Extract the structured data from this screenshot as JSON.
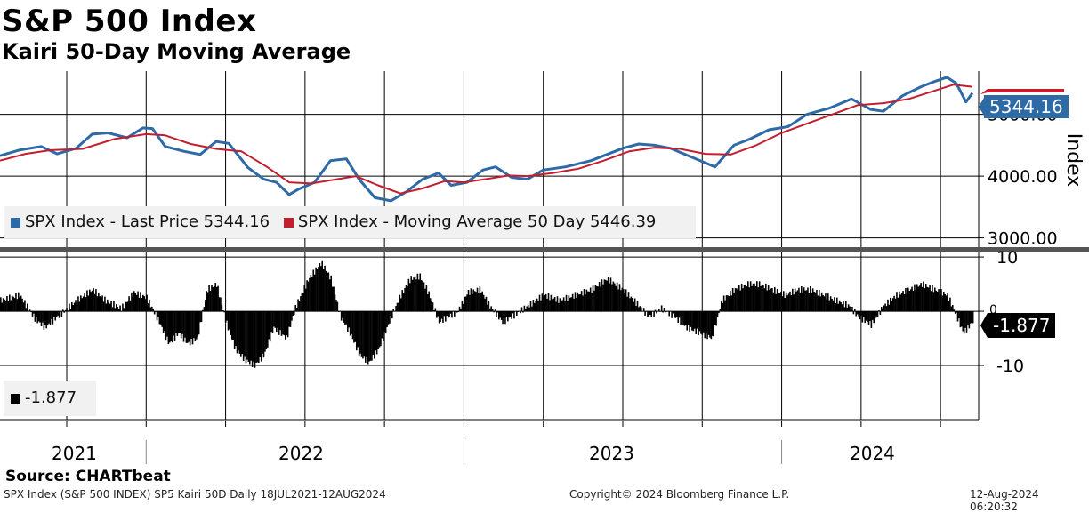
{
  "header": {
    "title": "S&P 500 Index",
    "subtitle": "Kairi 50-Day Moving Average"
  },
  "source": "Source: CHARTbeat",
  "footer": {
    "left": "SPX Index (S&P 500 INDEX) SP5 Kairi 50D  Daily 18JUL2021-12AUG2024",
    "center": "Copyright© 2024 Bloomberg Finance L.P.",
    "right": "12-Aug-2024 06:20:32"
  },
  "legend_top": {
    "last_price": "SPX Index - Last Price 5344.16",
    "moving_average": "SPX Index - Moving Average 50 Day 5446.39"
  },
  "legend_bottom": {
    "kairi": "-1.877"
  },
  "value_boxes": {
    "price": "5344.16",
    "kairi": "-1.877"
  },
  "colors": {
    "price": "#2e6aa6",
    "ma": "#c41e2e",
    "kairi": "#000000",
    "label_box": "#2e6aa6"
  },
  "chart_data": {
    "type": "line",
    "x_label_years": [
      "2021",
      "2022",
      "2023",
      "2024"
    ],
    "x_range": [
      2021.54,
      2024.62
    ],
    "top_panel": {
      "ylabel": "Index",
      "yticks": [
        "5000.00",
        "4000.00",
        "3000.00"
      ],
      "ylim": [
        2850,
        5700
      ],
      "series": [
        {
          "name": "SPX Index - Last Price",
          "last": 5344.16,
          "points": [
            [
              2021.54,
              4330
            ],
            [
              2021.6,
              4420
            ],
            [
              2021.67,
              4480
            ],
            [
              2021.72,
              4360
            ],
            [
              2021.78,
              4450
            ],
            [
              2021.83,
              4680
            ],
            [
              2021.88,
              4700
            ],
            [
              2021.94,
              4620
            ],
            [
              2021.99,
              4780
            ],
            [
              2022.02,
              4770
            ],
            [
              2022.06,
              4480
            ],
            [
              2022.12,
              4400
            ],
            [
              2022.17,
              4350
            ],
            [
              2022.22,
              4560
            ],
            [
              2022.26,
              4530
            ],
            [
              2022.32,
              4140
            ],
            [
              2022.37,
              3950
            ],
            [
              2022.41,
              3900
            ],
            [
              2022.45,
              3700
            ],
            [
              2022.48,
              3790
            ],
            [
              2022.53,
              3900
            ],
            [
              2022.58,
              4250
            ],
            [
              2022.63,
              4280
            ],
            [
              2022.67,
              3950
            ],
            [
              2022.72,
              3650
            ],
            [
              2022.77,
              3600
            ],
            [
              2022.82,
              3750
            ],
            [
              2022.87,
              3950
            ],
            [
              2022.92,
              4050
            ],
            [
              2022.96,
              3850
            ],
            [
              2023.01,
              3900
            ],
            [
              2023.06,
              4100
            ],
            [
              2023.1,
              4150
            ],
            [
              2023.15,
              3980
            ],
            [
              2023.2,
              3950
            ],
            [
              2023.25,
              4100
            ],
            [
              2023.32,
              4150
            ],
            [
              2023.4,
              4250
            ],
            [
              2023.45,
              4350
            ],
            [
              2023.5,
              4450
            ],
            [
              2023.55,
              4520
            ],
            [
              2023.6,
              4500
            ],
            [
              2023.65,
              4450
            ],
            [
              2023.72,
              4300
            ],
            [
              2023.79,
              4150
            ],
            [
              2023.85,
              4500
            ],
            [
              2023.9,
              4600
            ],
            [
              2023.96,
              4750
            ],
            [
              2024.02,
              4800
            ],
            [
              2024.08,
              5000
            ],
            [
              2024.15,
              5100
            ],
            [
              2024.22,
              5250
            ],
            [
              2024.28,
              5080
            ],
            [
              2024.32,
              5050
            ],
            [
              2024.38,
              5300
            ],
            [
              2024.44,
              5450
            ],
            [
              2024.48,
              5530
            ],
            [
              2024.52,
              5600
            ],
            [
              2024.55,
              5500
            ],
            [
              2024.58,
              5200
            ],
            [
              2024.6,
              5344.16
            ]
          ]
        },
        {
          "name": "SPX Index - Moving Average 50 Day",
          "last": 5446.39,
          "points": [
            [
              2021.54,
              4250
            ],
            [
              2021.62,
              4360
            ],
            [
              2021.7,
              4420
            ],
            [
              2021.8,
              4440
            ],
            [
              2021.9,
              4600
            ],
            [
              2022.0,
              4680
            ],
            [
              2022.06,
              4660
            ],
            [
              2022.14,
              4520
            ],
            [
              2022.22,
              4440
            ],
            [
              2022.3,
              4400
            ],
            [
              2022.38,
              4150
            ],
            [
              2022.45,
              3900
            ],
            [
              2022.52,
              3880
            ],
            [
              2022.6,
              3950
            ],
            [
              2022.66,
              4000
            ],
            [
              2022.73,
              3850
            ],
            [
              2022.8,
              3720
            ],
            [
              2022.87,
              3800
            ],
            [
              2022.94,
              3920
            ],
            [
              2023.0,
              3900
            ],
            [
              2023.08,
              3960
            ],
            [
              2023.14,
              4010
            ],
            [
              2023.2,
              4000
            ],
            [
              2023.28,
              4050
            ],
            [
              2023.36,
              4120
            ],
            [
              2023.44,
              4250
            ],
            [
              2023.52,
              4400
            ],
            [
              2023.6,
              4460
            ],
            [
              2023.68,
              4440
            ],
            [
              2023.76,
              4360
            ],
            [
              2023.84,
              4350
            ],
            [
              2023.92,
              4500
            ],
            [
              2024.0,
              4700
            ],
            [
              2024.08,
              4850
            ],
            [
              2024.16,
              5000
            ],
            [
              2024.24,
              5150
            ],
            [
              2024.32,
              5180
            ],
            [
              2024.4,
              5250
            ],
            [
              2024.48,
              5380
            ],
            [
              2024.54,
              5480
            ],
            [
              2024.6,
              5446.39
            ]
          ]
        }
      ]
    },
    "bottom_panel": {
      "name": "Kairi 50D",
      "yticks": [
        "10",
        "0",
        "-10"
      ],
      "ylim": [
        -20,
        11
      ],
      "last": -1.877,
      "points": [
        [
          2021.54,
          2
        ],
        [
          2021.6,
          3
        ],
        [
          2021.65,
          -1.5
        ],
        [
          2021.68,
          -3
        ],
        [
          2021.72,
          -1
        ],
        [
          2021.78,
          2
        ],
        [
          2021.83,
          4
        ],
        [
          2021.87,
          2
        ],
        [
          2021.92,
          0.5
        ],
        [
          2021.96,
          3.5
        ],
        [
          2022.0,
          2.5
        ],
        [
          2022.04,
          -2
        ],
        [
          2022.07,
          -6
        ],
        [
          2022.1,
          -4
        ],
        [
          2022.13,
          -6
        ],
        [
          2022.16,
          -5
        ],
        [
          2022.19,
          4
        ],
        [
          2022.22,
          5
        ],
        [
          2022.25,
          -2
        ],
        [
          2022.28,
          -7
        ],
        [
          2022.31,
          -9
        ],
        [
          2022.34,
          -10
        ],
        [
          2022.37,
          -8
        ],
        [
          2022.4,
          -3
        ],
        [
          2022.44,
          -5
        ],
        [
          2022.47,
          1
        ],
        [
          2022.51,
          6
        ],
        [
          2022.55,
          9
        ],
        [
          2022.58,
          6
        ],
        [
          2022.61,
          -1
        ],
        [
          2022.64,
          -4
        ],
        [
          2022.67,
          -8
        ],
        [
          2022.7,
          -9.5
        ],
        [
          2022.73,
          -7
        ],
        [
          2022.77,
          -1
        ],
        [
          2022.8,
          3
        ],
        [
          2022.83,
          6
        ],
        [
          2022.86,
          6.5
        ],
        [
          2022.89,
          3
        ],
        [
          2022.92,
          -2
        ],
        [
          2022.95,
          -1
        ],
        [
          2022.98,
          0
        ],
        [
          2023.01,
          3.5
        ],
        [
          2023.05,
          4
        ],
        [
          2023.08,
          1
        ],
        [
          2023.12,
          -2
        ],
        [
          2023.15,
          -1
        ],
        [
          2023.2,
          1
        ],
        [
          2023.25,
          3
        ],
        [
          2023.3,
          2
        ],
        [
          2023.35,
          3
        ],
        [
          2023.4,
          4
        ],
        [
          2023.45,
          6
        ],
        [
          2023.5,
          4
        ],
        [
          2023.55,
          1
        ],
        [
          2023.58,
          -1
        ],
        [
          2023.62,
          0.5
        ],
        [
          2023.66,
          -1
        ],
        [
          2023.7,
          -3
        ],
        [
          2023.74,
          -4
        ],
        [
          2023.78,
          -5
        ],
        [
          2023.81,
          2
        ],
        [
          2023.85,
          4
        ],
        [
          2023.89,
          5
        ],
        [
          2023.93,
          5
        ],
        [
          2023.97,
          4
        ],
        [
          2024.01,
          3
        ],
        [
          2024.05,
          4
        ],
        [
          2024.09,
          4
        ],
        [
          2024.13,
          3
        ],
        [
          2024.17,
          2
        ],
        [
          2024.21,
          1
        ],
        [
          2024.24,
          -1
        ],
        [
          2024.28,
          -2.5
        ],
        [
          2024.32,
          1
        ],
        [
          2024.36,
          3
        ],
        [
          2024.4,
          4
        ],
        [
          2024.44,
          5
        ],
        [
          2024.48,
          4
        ],
        [
          2024.52,
          3
        ],
        [
          2024.55,
          -1
        ],
        [
          2024.57,
          -4
        ],
        [
          2024.6,
          -1.877
        ]
      ]
    }
  }
}
